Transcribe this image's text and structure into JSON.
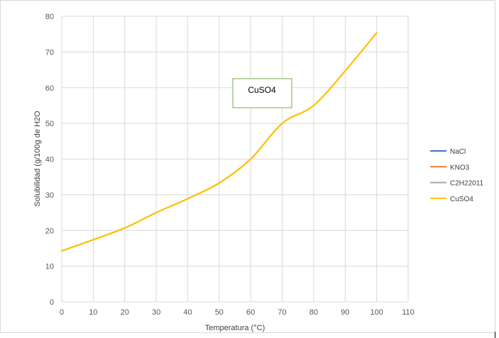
{
  "chart_data": {
    "type": "line",
    "title": "",
    "xlabel": "Temperatura (°C)",
    "ylabel": "Solubilidad (g/100g de H2O",
    "xlim": [
      0,
      110
    ],
    "ylim": [
      0,
      80
    ],
    "x_ticks": [
      0,
      10,
      20,
      30,
      40,
      50,
      60,
      70,
      80,
      90,
      100,
      110
    ],
    "y_ticks": [
      0,
      10,
      20,
      30,
      40,
      50,
      60,
      70,
      80
    ],
    "grid": true,
    "legend_position": "right",
    "series": [
      {
        "name": "NaCl",
        "color": "#4472c4",
        "x": [],
        "y": []
      },
      {
        "name": "KNO3",
        "color": "#ed7d31",
        "x": [],
        "y": []
      },
      {
        "name": "C2H22011",
        "color": "#a5a5a5",
        "x": [],
        "y": []
      },
      {
        "name": "CuSO4",
        "color": "#ffc000",
        "x": [
          0,
          10,
          20,
          30,
          40,
          50,
          60,
          70,
          80,
          90,
          100
        ],
        "y": [
          14.3,
          17.4,
          20.7,
          25.0,
          28.9,
          33.3,
          40.0,
          50.0,
          55.0,
          64.7,
          75.4
        ]
      }
    ],
    "annotations": [
      {
        "text": "CuSO4",
        "border_color": "#70ad47"
      }
    ]
  }
}
